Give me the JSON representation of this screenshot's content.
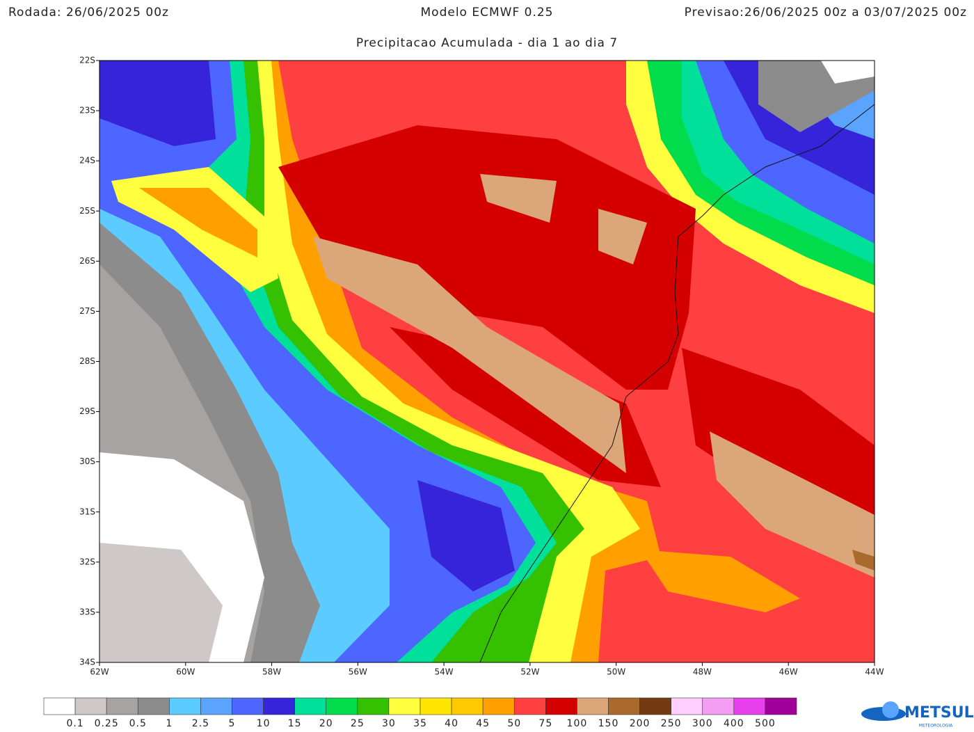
{
  "header": {
    "run": "Rodada: 26/06/2025 00z",
    "model": "Modelo ECMWF 0.25",
    "forecast": "Previsao:26/06/2025 00z a 03/07/2025 00z",
    "subtitle": "Precipitacao Acumulada - dia 1 ao dia 7"
  },
  "map": {
    "lonlim": [
      -62,
      -44
    ],
    "latlim": [
      -22,
      -34
    ],
    "lon_ticks": [
      {
        "value": -62,
        "label": "62W"
      },
      {
        "value": -60,
        "label": "60W"
      },
      {
        "value": -58,
        "label": "58W"
      },
      {
        "value": -56,
        "label": "56W"
      },
      {
        "value": -54,
        "label": "54W"
      },
      {
        "value": -52,
        "label": "52W"
      },
      {
        "value": -50,
        "label": "50W"
      },
      {
        "value": -48,
        "label": "48W"
      },
      {
        "value": -46,
        "label": "46W"
      },
      {
        "value": -44,
        "label": "44W"
      }
    ],
    "lat_ticks": [
      {
        "value": -22,
        "label": "22S"
      },
      {
        "value": -23,
        "label": "23S"
      },
      {
        "value": -24,
        "label": "24S"
      },
      {
        "value": -25,
        "label": "25S"
      },
      {
        "value": -26,
        "label": "26S"
      },
      {
        "value": -27,
        "label": "27S"
      },
      {
        "value": -28,
        "label": "28S"
      },
      {
        "value": -29,
        "label": "29S"
      },
      {
        "value": -30,
        "label": "30S"
      },
      {
        "value": -31,
        "label": "31S"
      },
      {
        "value": -32,
        "label": "32S"
      },
      {
        "value": -33,
        "label": "33S"
      },
      {
        "value": -34,
        "label": "34S"
      }
    ]
  },
  "colorbar": {
    "colors": [
      "#ffffff",
      "#cfc8c8",
      "#a8a3a3",
      "#8c8c8c",
      "#5ccbff",
      "#5aa4ff",
      "#4d66ff",
      "#3524d9",
      "#00e09b",
      "#00dc4b",
      "#35c000",
      "#ffff40",
      "#ffe600",
      "#ffc800",
      "#ff9f00",
      "#ff4040",
      "#d40000",
      "#dca67b",
      "#a96a2c",
      "#743a12",
      "#ffd0ff",
      "#f39df5",
      "#e840ec",
      "#a0009a"
    ],
    "labels": [
      0.1,
      0.25,
      0.5,
      1,
      2.5,
      5,
      10,
      15,
      20,
      25,
      30,
      35,
      40,
      45,
      50,
      75,
      100,
      150,
      200,
      250,
      300,
      400,
      500
    ]
  },
  "logo": {
    "name": "METSUL",
    "tagline": "METEOROLOGIA"
  }
}
